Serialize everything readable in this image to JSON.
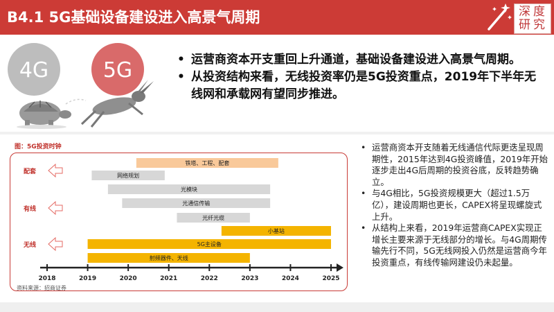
{
  "header": {
    "title": "B4.1 5G基础设备建设进入高景气周期",
    "seal_chars": [
      "深",
      "度",
      "研",
      "究"
    ],
    "colors": {
      "bar": "#cc3b36",
      "text": "#ffffff"
    }
  },
  "illustration": {
    "left_label": "4G",
    "right_label": "5G",
    "left_animal": "tortoise-icon",
    "right_animal": "hare-icon"
  },
  "top_bullets": [
    "运营商资本开支重回上升通道，基础设备建设进入高景气周期。",
    "从投资结构来看，无线投资率仍是5G投资重点，2019年下半年无线网和承载网有望同步推进。"
  ],
  "chart_data": {
    "type": "gantt",
    "title": "图：5G投资时钟",
    "categories": [
      "配套",
      "有线",
      "无线"
    ],
    "x_ticks": [
      "2018",
      "2019",
      "2020",
      "2021",
      "2022",
      "2023",
      "2024",
      "2025"
    ],
    "xlim": [
      2018,
      2025.3
    ],
    "colors": {
      "light": "#f9c99a",
      "mid": "#d7d7d7",
      "strong": "#f4b400",
      "frame": "#c83a35",
      "axis": "#222222"
    },
    "bars": [
      {
        "label": "铁塔、工程、配套",
        "start": 2020.2,
        "end": 2023.7,
        "style": "light"
      },
      {
        "label": "网络规划",
        "start": 2019.1,
        "end": 2020.9,
        "style": "mid"
      },
      {
        "label": "光模块",
        "start": 2019.5,
        "end": 2023.5,
        "style": "mid"
      },
      {
        "label": "光通信传输",
        "start": 2019.85,
        "end": 2023.5,
        "style": "mid"
      },
      {
        "label": "光纤光缆",
        "start": 2021.2,
        "end": 2023.0,
        "style": "mid"
      },
      {
        "label": "小基站",
        "start": 2022.3,
        "end": 2025.0,
        "style": "strong"
      },
      {
        "label": "5G主设备",
        "start": 2019.0,
        "end": 2025.0,
        "style": "strong"
      },
      {
        "label": "射频器件、天线",
        "start": 2019.0,
        "end": 2023.0,
        "style": "strong"
      }
    ]
  },
  "source_note": "资料来源：招商证券",
  "right_bullets": [
    "运营商资本开支随着无线通信代际更迭呈现周期性，2015年达到4G投资峰值，2019年开始逐步走出4G后周期的投资谷底，反转趋势确立。",
    "与4G相比，5G投资规模更大（超过1.5万亿），建设周期也更长，CAPEX将呈现螺旋式上升。",
    "从结构上来看，2019年运营商CAPEX实现正增长主要来源于无线部分的增长。与4G周期传输先行不同，5G无线网投入仍然是运营商今年投资重点，有线传输网建设仍未起量。"
  ]
}
